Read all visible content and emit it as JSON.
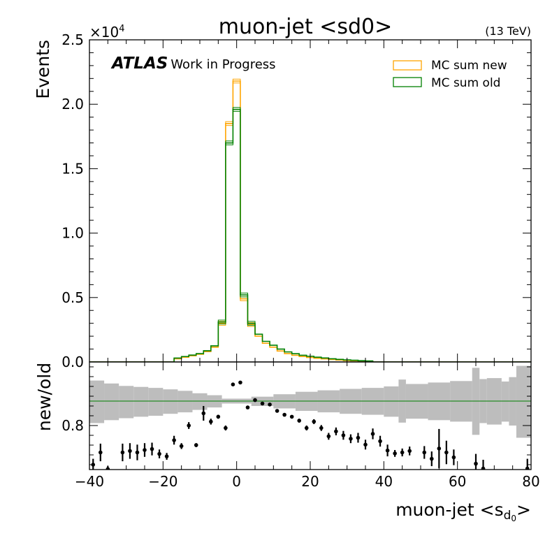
{
  "chart_data": [
    {
      "type": "line",
      "panel": "main",
      "title": "muon-jet <sd0>",
      "energy_label": "(13 TeV)",
      "experiment": "ATLAS",
      "experiment_note": "Work in Progress",
      "ylabel": "Events",
      "y_multiplier": "×10",
      "y_multiplier_exp": "4",
      "ylim": [
        0,
        25000
      ],
      "xlim": [
        -40,
        80
      ],
      "bin_width": 2,
      "yticks": [
        0,
        5000,
        10000,
        15000,
        20000,
        25000
      ],
      "ytick_labels": [
        "0.0",
        "0.5",
        "1.0",
        "1.5",
        "2.0",
        "2.5"
      ],
      "legend_position": "top-right",
      "series": [
        {
          "name": "MC sum new",
          "color": "#FFA500",
          "bins": [
            {
              "x": -16,
              "y": 250
            },
            {
              "x": -14,
              "y": 370
            },
            {
              "x": -12,
              "y": 480
            },
            {
              "x": -10,
              "y": 600
            },
            {
              "x": -8,
              "y": 800
            },
            {
              "x": -6,
              "y": 1150
            },
            {
              "x": -4,
              "y": 3000
            },
            {
              "x": -2,
              "y": 18500
            },
            {
              "x": 0,
              "y": 21800
            },
            {
              "x": 2,
              "y": 4900
            },
            {
              "x": 4,
              "y": 2900
            },
            {
              "x": 6,
              "y": 2000
            },
            {
              "x": 8,
              "y": 1450
            },
            {
              "x": 10,
              "y": 1150
            },
            {
              "x": 12,
              "y": 850
            },
            {
              "x": 14,
              "y": 650
            },
            {
              "x": 16,
              "y": 520
            },
            {
              "x": 18,
              "y": 420
            },
            {
              "x": 20,
              "y": 350
            },
            {
              "x": 22,
              "y": 290
            },
            {
              "x": 24,
              "y": 240
            },
            {
              "x": 26,
              "y": 190
            },
            {
              "x": 28,
              "y": 150
            },
            {
              "x": 30,
              "y": 110
            },
            {
              "x": 32,
              "y": 90
            },
            {
              "x": 34,
              "y": 70
            },
            {
              "x": 36,
              "y": 50
            }
          ]
        },
        {
          "name": "MC sum old",
          "color": "#008000",
          "bins": [
            {
              "x": -16,
              "y": 300
            },
            {
              "x": -14,
              "y": 420
            },
            {
              "x": -12,
              "y": 530
            },
            {
              "x": -10,
              "y": 650
            },
            {
              "x": -8,
              "y": 870
            },
            {
              "x": -6,
              "y": 1250
            },
            {
              "x": -4,
              "y": 3100
            },
            {
              "x": -2,
              "y": 17000
            },
            {
              "x": 0,
              "y": 19600
            },
            {
              "x": 2,
              "y": 5200
            },
            {
              "x": 4,
              "y": 3000
            },
            {
              "x": 6,
              "y": 2150
            },
            {
              "x": 8,
              "y": 1600
            },
            {
              "x": 10,
              "y": 1300
            },
            {
              "x": 12,
              "y": 1000
            },
            {
              "x": 14,
              "y": 780
            },
            {
              "x": 16,
              "y": 640
            },
            {
              "x": 18,
              "y": 520
            },
            {
              "x": 20,
              "y": 440
            },
            {
              "x": 22,
              "y": 370
            },
            {
              "x": 24,
              "y": 310
            },
            {
              "x": 26,
              "y": 250
            },
            {
              "x": 28,
              "y": 200
            },
            {
              "x": 30,
              "y": 160
            },
            {
              "x": 32,
              "y": 130
            },
            {
              "x": 34,
              "y": 100
            },
            {
              "x": 36,
              "y": 80
            }
          ]
        }
      ]
    },
    {
      "type": "scatter",
      "panel": "ratio",
      "ylabel": "new/old",
      "xlabel_main": "muon-jet <s",
      "xlabel_sub": "d",
      "xlabel_subsub": "0",
      "xlabel_close": ">",
      "xlim": [
        -40,
        80
      ],
      "ylim": [
        0.71,
        0.93
      ],
      "xticks": [
        -40,
        -20,
        0,
        20,
        40,
        60,
        80
      ],
      "xtick_labels": [
        "−40",
        "−20",
        "0",
        "20",
        "40",
        "60",
        "80"
      ],
      "yticks": [
        0.8
      ],
      "ytick_labels": [
        "0.8"
      ],
      "reference_line": 0.85,
      "reference_color": "#008000",
      "band_color": "#BDBDBD",
      "band": [
        {
          "x0": -40,
          "x1": -36,
          "lo": 0.805,
          "hi": 0.892
        },
        {
          "x0": -36,
          "x1": -32,
          "lo": 0.811,
          "hi": 0.886
        },
        {
          "x0": -32,
          "x1": -28,
          "lo": 0.815,
          "hi": 0.881
        },
        {
          "x0": -28,
          "x1": -24,
          "lo": 0.818,
          "hi": 0.879
        },
        {
          "x0": -24,
          "x1": -20,
          "lo": 0.82,
          "hi": 0.877
        },
        {
          "x0": -20,
          "x1": -16,
          "lo": 0.824,
          "hi": 0.874
        },
        {
          "x0": -16,
          "x1": -12,
          "lo": 0.827,
          "hi": 0.871
        },
        {
          "x0": -12,
          "x1": -8,
          "lo": 0.832,
          "hi": 0.866
        },
        {
          "x0": -8,
          "x1": -4,
          "lo": 0.837,
          "hi": 0.862
        },
        {
          "x0": -4,
          "x1": 4,
          "lo": 0.845,
          "hi": 0.855
        },
        {
          "x0": 4,
          "x1": 10,
          "lo": 0.84,
          "hi": 0.859
        },
        {
          "x0": 10,
          "x1": 16,
          "lo": 0.835,
          "hi": 0.864
        },
        {
          "x0": 16,
          "x1": 22,
          "lo": 0.83,
          "hi": 0.869
        },
        {
          "x0": 22,
          "x1": 28,
          "lo": 0.827,
          "hi": 0.872
        },
        {
          "x0": 28,
          "x1": 34,
          "lo": 0.824,
          "hi": 0.875
        },
        {
          "x0": 34,
          "x1": 40,
          "lo": 0.822,
          "hi": 0.877
        },
        {
          "x0": 40,
          "x1": 44,
          "lo": 0.818,
          "hi": 0.88
        },
        {
          "x0": 44,
          "x1": 46,
          "lo": 0.806,
          "hi": 0.894
        },
        {
          "x0": 46,
          "x1": 52,
          "lo": 0.814,
          "hi": 0.885
        },
        {
          "x0": 52,
          "x1": 58,
          "lo": 0.811,
          "hi": 0.888
        },
        {
          "x0": 58,
          "x1": 64,
          "lo": 0.808,
          "hi": 0.891
        },
        {
          "x0": 64,
          "x1": 66,
          "lo": 0.781,
          "hi": 0.918
        },
        {
          "x0": 66,
          "x1": 68,
          "lo": 0.805,
          "hi": 0.895
        },
        {
          "x0": 68,
          "x1": 72,
          "lo": 0.802,
          "hi": 0.897
        },
        {
          "x0": 72,
          "x1": 74,
          "lo": 0.808,
          "hi": 0.89
        },
        {
          "x0": 74,
          "x1": 76,
          "lo": 0.8,
          "hi": 0.899
        },
        {
          "x0": 76,
          "x1": 80,
          "lo": 0.775,
          "hi": 0.922
        }
      ],
      "points": [
        {
          "x": -39,
          "y": 0.72,
          "err": 0.012
        },
        {
          "x": -37,
          "y": 0.745,
          "err": 0.018
        },
        {
          "x": -35,
          "y": 0.711,
          "err": 0.006
        },
        {
          "x": -31,
          "y": 0.745,
          "err": 0.018
        },
        {
          "x": -29,
          "y": 0.748,
          "err": 0.016
        },
        {
          "x": -27,
          "y": 0.745,
          "err": 0.016
        },
        {
          "x": -25,
          "y": 0.75,
          "err": 0.014
        },
        {
          "x": -23,
          "y": 0.752,
          "err": 0.013
        },
        {
          "x": -21,
          "y": 0.742,
          "err": 0.009
        },
        {
          "x": -19,
          "y": 0.737,
          "err": 0.007
        },
        {
          "x": -17,
          "y": 0.77,
          "err": 0.009
        },
        {
          "x": -15,
          "y": 0.758,
          "err": 0.006
        },
        {
          "x": -13,
          "y": 0.8,
          "err": 0.007
        },
        {
          "x": -11,
          "y": 0.76,
          "err": 0.004
        },
        {
          "x": -9,
          "y": 0.825,
          "err": 0.015
        },
        {
          "x": -7,
          "y": 0.808,
          "err": 0.006
        },
        {
          "x": -5,
          "y": 0.818,
          "err": 0.004
        },
        {
          "x": -3,
          "y": 0.795,
          "err": 0.005
        },
        {
          "x": -1,
          "y": 0.884,
          "err": 0.002
        },
        {
          "x": 1,
          "y": 0.888,
          "err": 0.002
        },
        {
          "x": 3,
          "y": 0.837,
          "err": 0.002
        },
        {
          "x": 5,
          "y": 0.852,
          "err": 0.002
        },
        {
          "x": 7,
          "y": 0.845,
          "err": 0.002
        },
        {
          "x": 9,
          "y": 0.843,
          "err": 0.002
        },
        {
          "x": 11,
          "y": 0.83,
          "err": 0.002
        },
        {
          "x": 13,
          "y": 0.822,
          "err": 0.003
        },
        {
          "x": 15,
          "y": 0.818,
          "err": 0.003
        },
        {
          "x": 17,
          "y": 0.81,
          "err": 0.004
        },
        {
          "x": 19,
          "y": 0.795,
          "err": 0.005
        },
        {
          "x": 21,
          "y": 0.808,
          "err": 0.005
        },
        {
          "x": 23,
          "y": 0.795,
          "err": 0.006
        },
        {
          "x": 25,
          "y": 0.778,
          "err": 0.007
        },
        {
          "x": 27,
          "y": 0.788,
          "err": 0.008
        },
        {
          "x": 29,
          "y": 0.78,
          "err": 0.009
        },
        {
          "x": 31,
          "y": 0.773,
          "err": 0.009
        },
        {
          "x": 33,
          "y": 0.775,
          "err": 0.01
        },
        {
          "x": 35,
          "y": 0.761,
          "err": 0.01
        },
        {
          "x": 37,
          "y": 0.783,
          "err": 0.011
        },
        {
          "x": 39,
          "y": 0.768,
          "err": 0.011
        },
        {
          "x": 41,
          "y": 0.749,
          "err": 0.012
        },
        {
          "x": 43,
          "y": 0.743,
          "err": 0.007
        },
        {
          "x": 45,
          "y": 0.745,
          "err": 0.008
        },
        {
          "x": 47,
          "y": 0.748,
          "err": 0.009
        },
        {
          "x": 51,
          "y": 0.745,
          "err": 0.013
        },
        {
          "x": 53,
          "y": 0.732,
          "err": 0.015
        },
        {
          "x": 55,
          "y": 0.753,
          "err": 0.04
        },
        {
          "x": 57,
          "y": 0.745,
          "err": 0.024
        },
        {
          "x": 59,
          "y": 0.735,
          "err": 0.016
        },
        {
          "x": 65,
          "y": 0.722,
          "err": 0.02
        },
        {
          "x": 67,
          "y": 0.712,
          "err": 0.018
        },
        {
          "x": 79,
          "y": 0.712,
          "err": 0.02
        }
      ]
    }
  ]
}
